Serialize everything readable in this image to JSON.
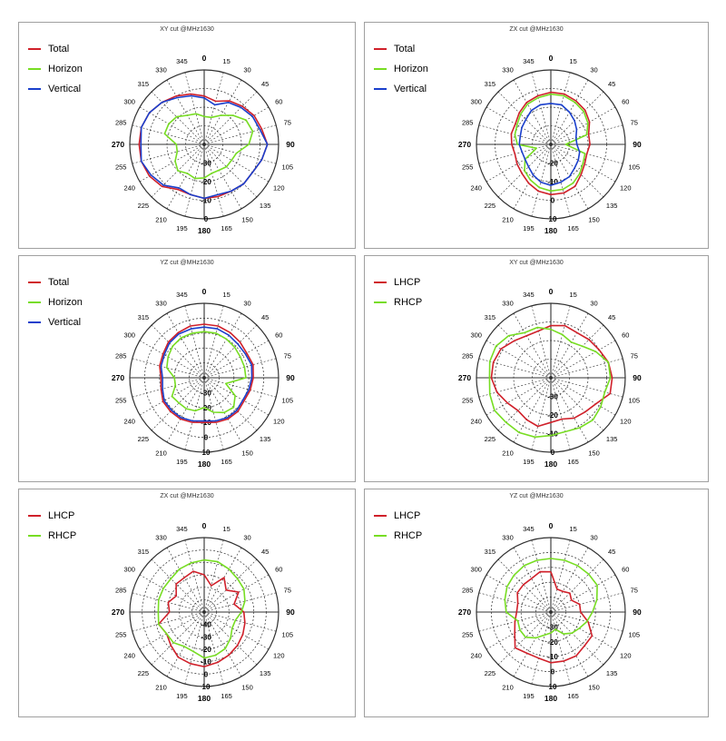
{
  "colors": {
    "red": "#d0202a",
    "green": "#77dd22",
    "blue": "#1a3fcc",
    "grid": "#303030"
  },
  "chart_data": [
    {
      "type": "polar-line",
      "title": "XY cut @MHz1630",
      "angles": [
        0,
        15,
        30,
        45,
        60,
        75,
        90,
        105,
        120,
        135,
        150,
        165,
        180,
        195,
        210,
        225,
        240,
        255,
        270,
        285,
        300,
        315,
        330,
        345
      ],
      "angle_ticks": [
        "0",
        "15",
        "30",
        "45",
        "60",
        "75",
        "90",
        "105",
        "120",
        "135",
        "150",
        "165",
        "180",
        "195",
        "210",
        "225",
        "240",
        "255",
        "270",
        "285",
        "300",
        "315",
        "330",
        "345"
      ],
      "radial_ticks": [
        "-30",
        "-20",
        "-10",
        "0"
      ],
      "r_min": -40,
      "r_max": 0,
      "legend": "top-left",
      "series": [
        {
          "name": "Total",
          "color": "#d0202a",
          "values": [
            -14,
            -16,
            -13,
            -11,
            -9,
            -8,
            -6,
            -8,
            -10,
            -10,
            -11,
            -11,
            -11,
            -12,
            -12,
            -8,
            -6,
            -5,
            -5,
            -5,
            -6,
            -8,
            -10,
            -12
          ]
        },
        {
          "name": "Horizon",
          "color": "#77dd22",
          "values": [
            -25,
            -25,
            -22,
            -18,
            -14,
            -13,
            -16,
            -22,
            -23,
            -23,
            -24,
            -24,
            -22,
            -21,
            -22,
            -20,
            -22,
            -25,
            -25,
            -18,
            -18,
            -19,
            -22,
            -23
          ]
        },
        {
          "name": "Vertical",
          "color": "#1a3fcc",
          "values": [
            -15,
            -18,
            -14,
            -12,
            -10,
            -9,
            -6,
            -8,
            -10,
            -10,
            -11,
            -12,
            -11,
            -12,
            -13,
            -9,
            -7,
            -5,
            -6,
            -5,
            -6,
            -8,
            -11,
            -13
          ]
        }
      ]
    },
    {
      "type": "polar-line",
      "title": "ZX cut @MHz1630",
      "angles": [
        0,
        15,
        30,
        45,
        60,
        75,
        90,
        105,
        120,
        135,
        150,
        165,
        180,
        195,
        210,
        225,
        240,
        255,
        270,
        285,
        300,
        315,
        330,
        345
      ],
      "angle_ticks": [
        "0",
        "15",
        "30",
        "45",
        "60",
        "75",
        "90",
        "105",
        "120",
        "135",
        "150",
        "165",
        "180",
        "195",
        "210",
        "225",
        "240",
        "255",
        "270",
        "285",
        "300",
        "315",
        "330",
        "345"
      ],
      "radial_ticks": [
        "-20",
        "-10",
        "0",
        "10"
      ],
      "r_min": -30,
      "r_max": 10,
      "legend": "top-left",
      "series": [
        {
          "name": "Total",
          "color": "#d0202a",
          "values": [
            -2,
            -2,
            -3,
            -4,
            -6,
            -9,
            -9,
            -10,
            -9,
            -7,
            -4,
            -3,
            -3,
            -4,
            -6,
            -8,
            -9,
            -10,
            -9,
            -8,
            -8,
            -6,
            -4,
            -3
          ]
        },
        {
          "name": "Horizon",
          "color": "#77dd22",
          "values": [
            -3,
            -3,
            -4,
            -5,
            -7,
            -10,
            -22,
            -11,
            -10,
            -8,
            -6,
            -5,
            -5,
            -6,
            -8,
            -10,
            -14,
            -22,
            -12,
            -10,
            -9,
            -7,
            -5,
            -4
          ]
        },
        {
          "name": "Vertical",
          "color": "#1a3fcc",
          "values": [
            -8,
            -8,
            -10,
            -12,
            -14,
            -16,
            -16,
            -14,
            -13,
            -12,
            -10,
            -9,
            -8,
            -9,
            -11,
            -13,
            -14,
            -14,
            -13,
            -13,
            -12,
            -11,
            -9,
            -8
          ]
        }
      ]
    },
    {
      "type": "polar-line",
      "title": "YZ cut @MHz1630",
      "angles": [
        0,
        15,
        30,
        45,
        60,
        75,
        90,
        105,
        120,
        135,
        150,
        165,
        180,
        195,
        210,
        225,
        240,
        255,
        270,
        285,
        300,
        315,
        330,
        345
      ],
      "angle_ticks": [
        "0",
        "15",
        "30",
        "45",
        "60",
        "75",
        "90",
        "105",
        "120",
        "135",
        "150",
        "165",
        "180",
        "195",
        "210",
        "225",
        "240",
        "255",
        "270",
        "285",
        "300",
        "315",
        "330",
        "345"
      ],
      "radial_ticks": [
        "-30",
        "-20",
        "-10",
        "0",
        "10"
      ],
      "r_min": -40,
      "r_max": 10,
      "legend": "top-left",
      "series": [
        {
          "name": "Total",
          "color": "#d0202a",
          "values": [
            -4,
            -4,
            -5,
            -6,
            -7,
            -6,
            -7,
            -8,
            -9,
            -8,
            -8,
            -9,
            -10,
            -9,
            -8,
            -8,
            -8,
            -10,
            -11,
            -9,
            -8,
            -6,
            -5,
            -4
          ]
        },
        {
          "name": "Horizon",
          "color": "#77dd22",
          "values": [
            -9,
            -9,
            -10,
            -11,
            -12,
            -12,
            -12,
            -25,
            -16,
            -12,
            -13,
            -16,
            -20,
            -17,
            -16,
            -16,
            -15,
            -20,
            -20,
            -14,
            -12,
            -10,
            -9,
            -9
          ]
        },
        {
          "name": "Vertical",
          "color": "#1a3fcc",
          "values": [
            -6,
            -6,
            -7,
            -8,
            -8,
            -7,
            -8,
            -9,
            -10,
            -9,
            -9,
            -10,
            -11,
            -10,
            -9,
            -9,
            -9,
            -11,
            -12,
            -10,
            -9,
            -7,
            -6,
            -6
          ]
        }
      ]
    },
    {
      "type": "polar-line",
      "title": "XY cut @MHz1630",
      "angles": [
        0,
        15,
        30,
        45,
        60,
        75,
        90,
        105,
        120,
        135,
        150,
        165,
        180,
        195,
        210,
        225,
        240,
        255,
        270,
        285,
        300,
        315,
        330,
        345
      ],
      "angle_ticks": [
        "0",
        "15",
        "30",
        "45",
        "60",
        "75",
        "90",
        "105",
        "120",
        "135",
        "150",
        "165",
        "180",
        "195",
        "210",
        "225",
        "240",
        "255",
        "270",
        "285",
        "300",
        "315",
        "330",
        "345"
      ],
      "radial_ticks": [
        "-30",
        "-20",
        "-10",
        "0"
      ],
      "r_min": -40,
      "r_max": 0,
      "legend": "top-left",
      "series": [
        {
          "name": "LHCP",
          "color": "#d0202a",
          "values": [
            -12,
            -11,
            -12,
            -11,
            -10,
            -8,
            -7,
            -7,
            -12,
            -14,
            -15,
            -17,
            -16,
            -13,
            -14,
            -15,
            -13,
            -10,
            -8,
            -8,
            -9,
            -12,
            -14,
            -14
          ]
        },
        {
          "name": "RHCP",
          "color": "#77dd22",
          "values": [
            -14,
            -16,
            -18,
            -16,
            -12,
            -8,
            -8,
            -10,
            -9,
            -8,
            -9,
            -10,
            -9,
            -7,
            -6,
            -6,
            -5,
            -6,
            -7,
            -6,
            -6,
            -8,
            -12,
            -12
          ]
        }
      ]
    },
    {
      "type": "polar-line",
      "title": "ZX cut @MHz1630",
      "angles": [
        0,
        15,
        30,
        45,
        60,
        75,
        90,
        105,
        120,
        135,
        150,
        165,
        180,
        195,
        210,
        225,
        240,
        255,
        270,
        285,
        300,
        315,
        330,
        345
      ],
      "angle_ticks": [
        "0",
        "15",
        "30",
        "45",
        "60",
        "75",
        "90",
        "105",
        "120",
        "135",
        "150",
        "165",
        "180",
        "195",
        "210",
        "225",
        "240",
        "255",
        "270",
        "285",
        "300",
        "315",
        "330",
        "345"
      ],
      "radial_ticks": [
        "-40",
        "-30",
        "-20",
        "-10",
        "0",
        "10"
      ],
      "r_min": -50,
      "r_max": 10,
      "legend": "top-left",
      "series": [
        {
          "name": "LHCP",
          "color": "#d0202a",
          "values": [
            -20,
            -28,
            -18,
            -25,
            -18,
            -25,
            -18,
            -16,
            -14,
            -12,
            -10,
            -8,
            -6,
            -7,
            -8,
            -12,
            -15,
            -12,
            -22,
            -20,
            -24,
            -18,
            -18,
            -16
          ]
        },
        {
          "name": "RHCP",
          "color": "#77dd22",
          "values": [
            -8,
            -8,
            -10,
            -12,
            -13,
            -16,
            -20,
            -24,
            -24,
            -20,
            -16,
            -14,
            -13,
            -17,
            -18,
            -15,
            -15,
            -12,
            -13,
            -12,
            -12,
            -12,
            -10,
            -9
          ]
        }
      ]
    },
    {
      "type": "polar-line",
      "title": "YZ cut @MHz1630",
      "angles": [
        0,
        15,
        30,
        45,
        60,
        75,
        90,
        105,
        120,
        135,
        150,
        165,
        180,
        195,
        210,
        225,
        240,
        255,
        270,
        285,
        300,
        315,
        330,
        345
      ],
      "angle_ticks": [
        "0",
        "15",
        "30",
        "45",
        "60",
        "75",
        "90",
        "105",
        "120",
        "135",
        "150",
        "165",
        "180",
        "195",
        "210",
        "225",
        "240",
        "255",
        "270",
        "285",
        "300",
        "315",
        "330",
        "345"
      ],
      "radial_ticks": [
        "-30",
        "-20",
        "-10",
        "0",
        "10"
      ],
      "r_min": -40,
      "r_max": 10,
      "legend": "top-left",
      "series": [
        {
          "name": "LHCP",
          "color": "#d0202a",
          "values": [
            -13,
            -24,
            -24,
            -22,
            -24,
            -20,
            -20,
            -14,
            -8,
            -8,
            -6,
            -6,
            -6,
            -8,
            -8,
            -6,
            -12,
            -15,
            -17,
            -17,
            -14,
            -14,
            -14,
            -12
          ]
        },
        {
          "name": "RHCP",
          "color": "#77dd22",
          "values": [
            -4,
            -4,
            -4,
            -4,
            -4,
            -8,
            -12,
            -15,
            -18,
            -20,
            -23,
            -28,
            -26,
            -24,
            -20,
            -16,
            -16,
            -17,
            -10,
            -8,
            -6,
            -5,
            -4,
            -4
          ]
        }
      ]
    }
  ]
}
